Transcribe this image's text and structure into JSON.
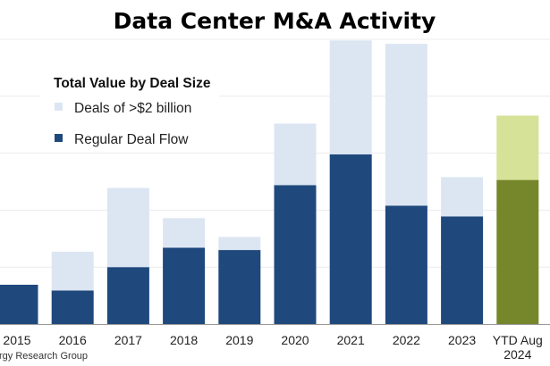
{
  "chart_data": {
    "type": "bar",
    "stacked": true,
    "title": "Data Center M&A Activity",
    "xlabel": "",
    "ylabel": "",
    "ylim": [
      0,
      5
    ],
    "grid": true,
    "legend": {
      "title": "Total Value by Deal Size",
      "placement": "top-left"
    },
    "categories": [
      "2015",
      "2016",
      "2017",
      "2018",
      "2019",
      "2020",
      "2021",
      "2022",
      "2023",
      "YTD Aug 2024"
    ],
    "series": [
      {
        "name": "Regular Deal Flow",
        "color": "#1f497d",
        "values": [
          0.69,
          0.59,
          1.0,
          1.34,
          1.3,
          2.44,
          2.98,
          2.08,
          1.89,
          2.53
        ]
      },
      {
        "name": "Deals of >$2 billion",
        "color": "#dce6f2",
        "values": [
          0,
          0.68,
          1.39,
          0.52,
          0.23,
          1.08,
          2.0,
          2.84,
          0.69,
          1.13
        ]
      }
    ],
    "highlight_colors": {
      "regular": "#76862a",
      "large": "#d5e297"
    },
    "source": "rgy Research Group"
  }
}
